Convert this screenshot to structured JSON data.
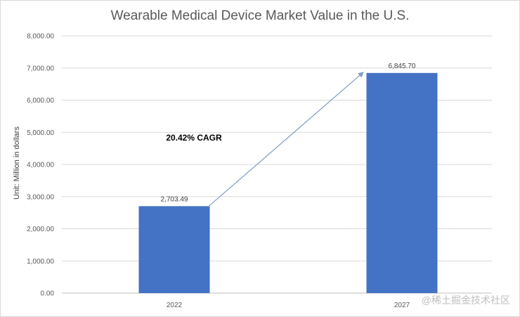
{
  "chart_data": {
    "type": "bar",
    "title": "Wearable Medical Device Market Value in the U.S.",
    "xlabel": "",
    "ylabel": "Unit: Million in dollars",
    "categories": [
      "2022",
      "2027"
    ],
    "values": [
      2703.49,
      6845.7
    ],
    "data_labels": [
      "2,703.49",
      "6,845.70"
    ],
    "ylim": [
      0,
      8000
    ],
    "y_ticks": [
      "0.00",
      "1,000.00",
      "2,000.00",
      "3,000.00",
      "4,000.00",
      "5,000.00",
      "6,000.00",
      "7,000.00",
      "8,000.00"
    ],
    "grid": true,
    "legend": "none",
    "annotation": "20.42% CAGR",
    "colors": {
      "bar": "#4472c4",
      "grid": "#d9d9d9",
      "arrow": "#7f9cc4"
    }
  },
  "watermark": "@稀土掘金技术社区"
}
